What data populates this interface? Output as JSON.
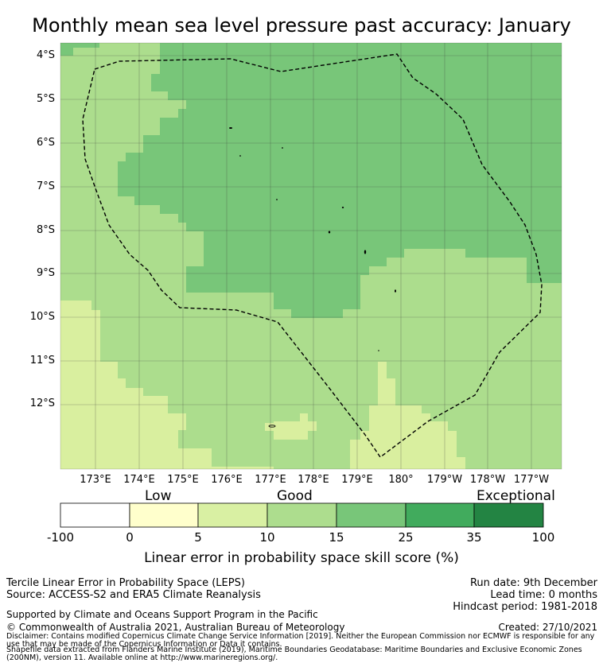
{
  "title": "Monthly mean sea level pressure past accuracy: January",
  "map": {
    "latitude_labels": [
      "4°S",
      "5°S",
      "6°S",
      "7°S",
      "8°S",
      "9°S",
      "10°S",
      "11°S",
      "12°S"
    ],
    "longitude_labels": [
      "173°E",
      "174°E",
      "175°E",
      "176°E",
      "177°E",
      "178°E",
      "179°E",
      "180°",
      "179°W",
      "178°W",
      "177°W"
    ],
    "colors": {
      "good_light": "#d9ef9f",
      "good": "#acdd8d",
      "good_plus": "#78c679",
      "boundary": "#000000"
    },
    "boundary_style": "dashed",
    "features": [
      "eez-boundary",
      "islands"
    ]
  },
  "colorbar": {
    "category_labels": [
      "Low",
      "Good",
      "Exceptional"
    ],
    "tick_labels": [
      "-100",
      "0",
      "5",
      "10",
      "15",
      "25",
      "35",
      "100"
    ],
    "colors": [
      "#ffffff",
      "#ffffcc",
      "#d9f0a3",
      "#addd8e",
      "#78c679",
      "#41ab5d",
      "#238443"
    ],
    "title": "Linear error in probability space skill score (%)"
  },
  "footer": {
    "method": "Tercile Linear Error in Probability Space (LEPS)",
    "source": "Source: ACCESS-S2 and ERA5 Climate Reanalysis",
    "run_date": "Run date: 9th December",
    "lead_time": "Lead time: 0 months",
    "hindcast": "Hindcast period: 1981-2018",
    "support": "Supported by Climate and Oceans Support Program in the Pacific",
    "copyright": "© Commonwealth of Australia 2021, Australian Bureau of Meteorology",
    "created": "Created: 27/10/2021",
    "disclaimer": "Disclaimer: Contains modified Copernicus Climate Change Service Information [2019]. Neither the European Commission nor ECMWF is responsible for any use that may be made of the Copernicus Information or Data it contains.",
    "shapefile": "Shapefile data extracted from Flanders Marine Institute (2019), Maritime Boundaries Geodatabase: Maritime Boundaries and Exclusive Economic Zones (200NM), version 11. Available online at http://www.marineregions.org/."
  }
}
